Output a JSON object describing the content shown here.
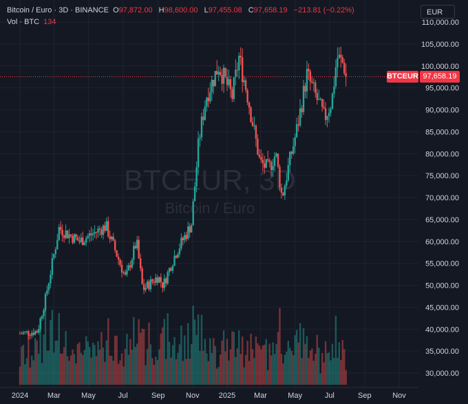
{
  "header": {
    "symbol_line": "Bitcoin / Euro · 3D · BINANCE",
    "open_label": "O",
    "open": "97,872.00",
    "high_label": "H",
    "high": "98,600.00",
    "low_label": "L",
    "low": "97,455.08",
    "close_label": "C",
    "close": "97,658.19",
    "change": "−213.81 (−0.22%)",
    "volume_label": "Vol · BTC",
    "volume": "134"
  },
  "currency_button": "EUR",
  "price_tag": {
    "symbol": "BTCEUR",
    "value": "97,658.19"
  },
  "watermark": {
    "ticker": "BTCEUR, 3D",
    "name": "Bitcoin / Euro"
  },
  "colors": {
    "up": "#26a69a",
    "down": "#ef5350",
    "background": "#141823",
    "grid": "#1f2330"
  },
  "chart_data": {
    "type": "candlestick",
    "title": "Bitcoin / Euro · 3D · BINANCE",
    "y_ticks": [
      "110,000.00",
      "105,000.00",
      "100,000.00",
      "95,000.00",
      "90,000.00",
      "85,000.00",
      "80,000.00",
      "75,000.00",
      "70,000.00",
      "65,000.00",
      "60,000.00",
      "55,000.00",
      "50,000.00",
      "45,000.00",
      "40,000.00",
      "35,000.00",
      "30,000.00"
    ],
    "x_ticks": [
      "2024",
      "Mar",
      "May",
      "Jul",
      "Sep",
      "Nov",
      "2025",
      "Mar",
      "May",
      "Jul",
      "Sep",
      "Nov"
    ],
    "ylim": [
      28000,
      111000
    ],
    "last_price": 97658.19,
    "trend_points": [
      [
        "2024-01-01",
        39000
      ],
      [
        "2024-02-01",
        39500
      ],
      [
        "2024-02-15",
        47000
      ],
      [
        "2024-03-10",
        63000
      ],
      [
        "2024-04-15",
        60000
      ],
      [
        "2024-06-01",
        63500
      ],
      [
        "2024-07-06",
        51500
      ],
      [
        "2024-07-25",
        60000
      ],
      [
        "2024-08-05",
        49000
      ],
      [
        "2024-09-01",
        52000
      ],
      [
        "2024-09-10",
        50000
      ],
      [
        "2024-10-01",
        57000
      ],
      [
        "2024-10-30",
        64000
      ],
      [
        "2024-11-12",
        83000
      ],
      [
        "2024-11-25",
        93000
      ],
      [
        "2024-12-17",
        100000
      ],
      [
        "2025-01-10",
        93000
      ],
      [
        "2025-01-22",
        102000
      ],
      [
        "2025-02-05",
        94000
      ],
      [
        "2025-02-28",
        78000
      ],
      [
        "2025-03-15",
        76500
      ],
      [
        "2025-03-28",
        80000
      ],
      [
        "2025-04-08",
        70000
      ],
      [
        "2025-04-21",
        78000
      ],
      [
        "2025-05-05",
        86000
      ],
      [
        "2025-05-22",
        98000
      ],
      [
        "2025-06-10",
        92000
      ],
      [
        "2025-06-22",
        88000
      ],
      [
        "2025-07-05",
        92000
      ],
      [
        "2025-07-14",
        102000
      ],
      [
        "2025-07-25",
        100500
      ],
      [
        "2025-08-01",
        97658
      ]
    ]
  }
}
